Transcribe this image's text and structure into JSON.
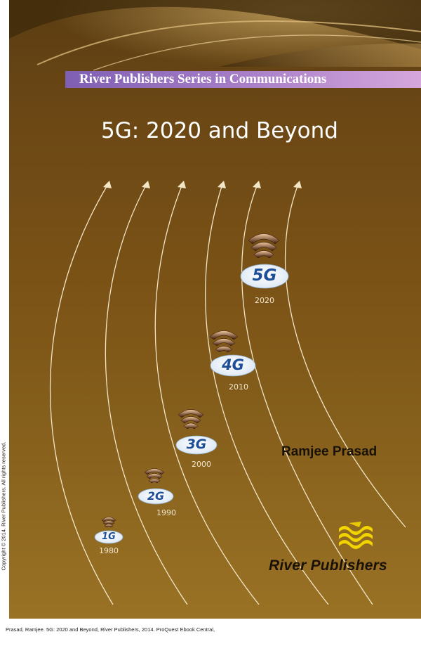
{
  "cover": {
    "series": "River Publishers Series in Communications",
    "title": "5G: 2020 and Beyond",
    "author": "Ramjee Prasad",
    "publisher": "River Publishers",
    "generations": [
      {
        "label": "1G",
        "year": "1980"
      },
      {
        "label": "2G",
        "year": "1990"
      },
      {
        "label": "3G",
        "year": "2000"
      },
      {
        "label": "4G",
        "year": "2010"
      },
      {
        "label": "5G",
        "year": "2020"
      }
    ],
    "colors": {
      "background": "#7a5216",
      "series_band": "#a77ec7",
      "generation_text": "#1f4e99",
      "publisher_logo": "#f2d400"
    }
  },
  "copyright_side": "Copyright © 2014. River Publishers. All rights reserved.",
  "footer": "Prasad, Ramjee. 5G: 2020 and Beyond, River Publishers, 2014. ProQuest Ebook Central,"
}
